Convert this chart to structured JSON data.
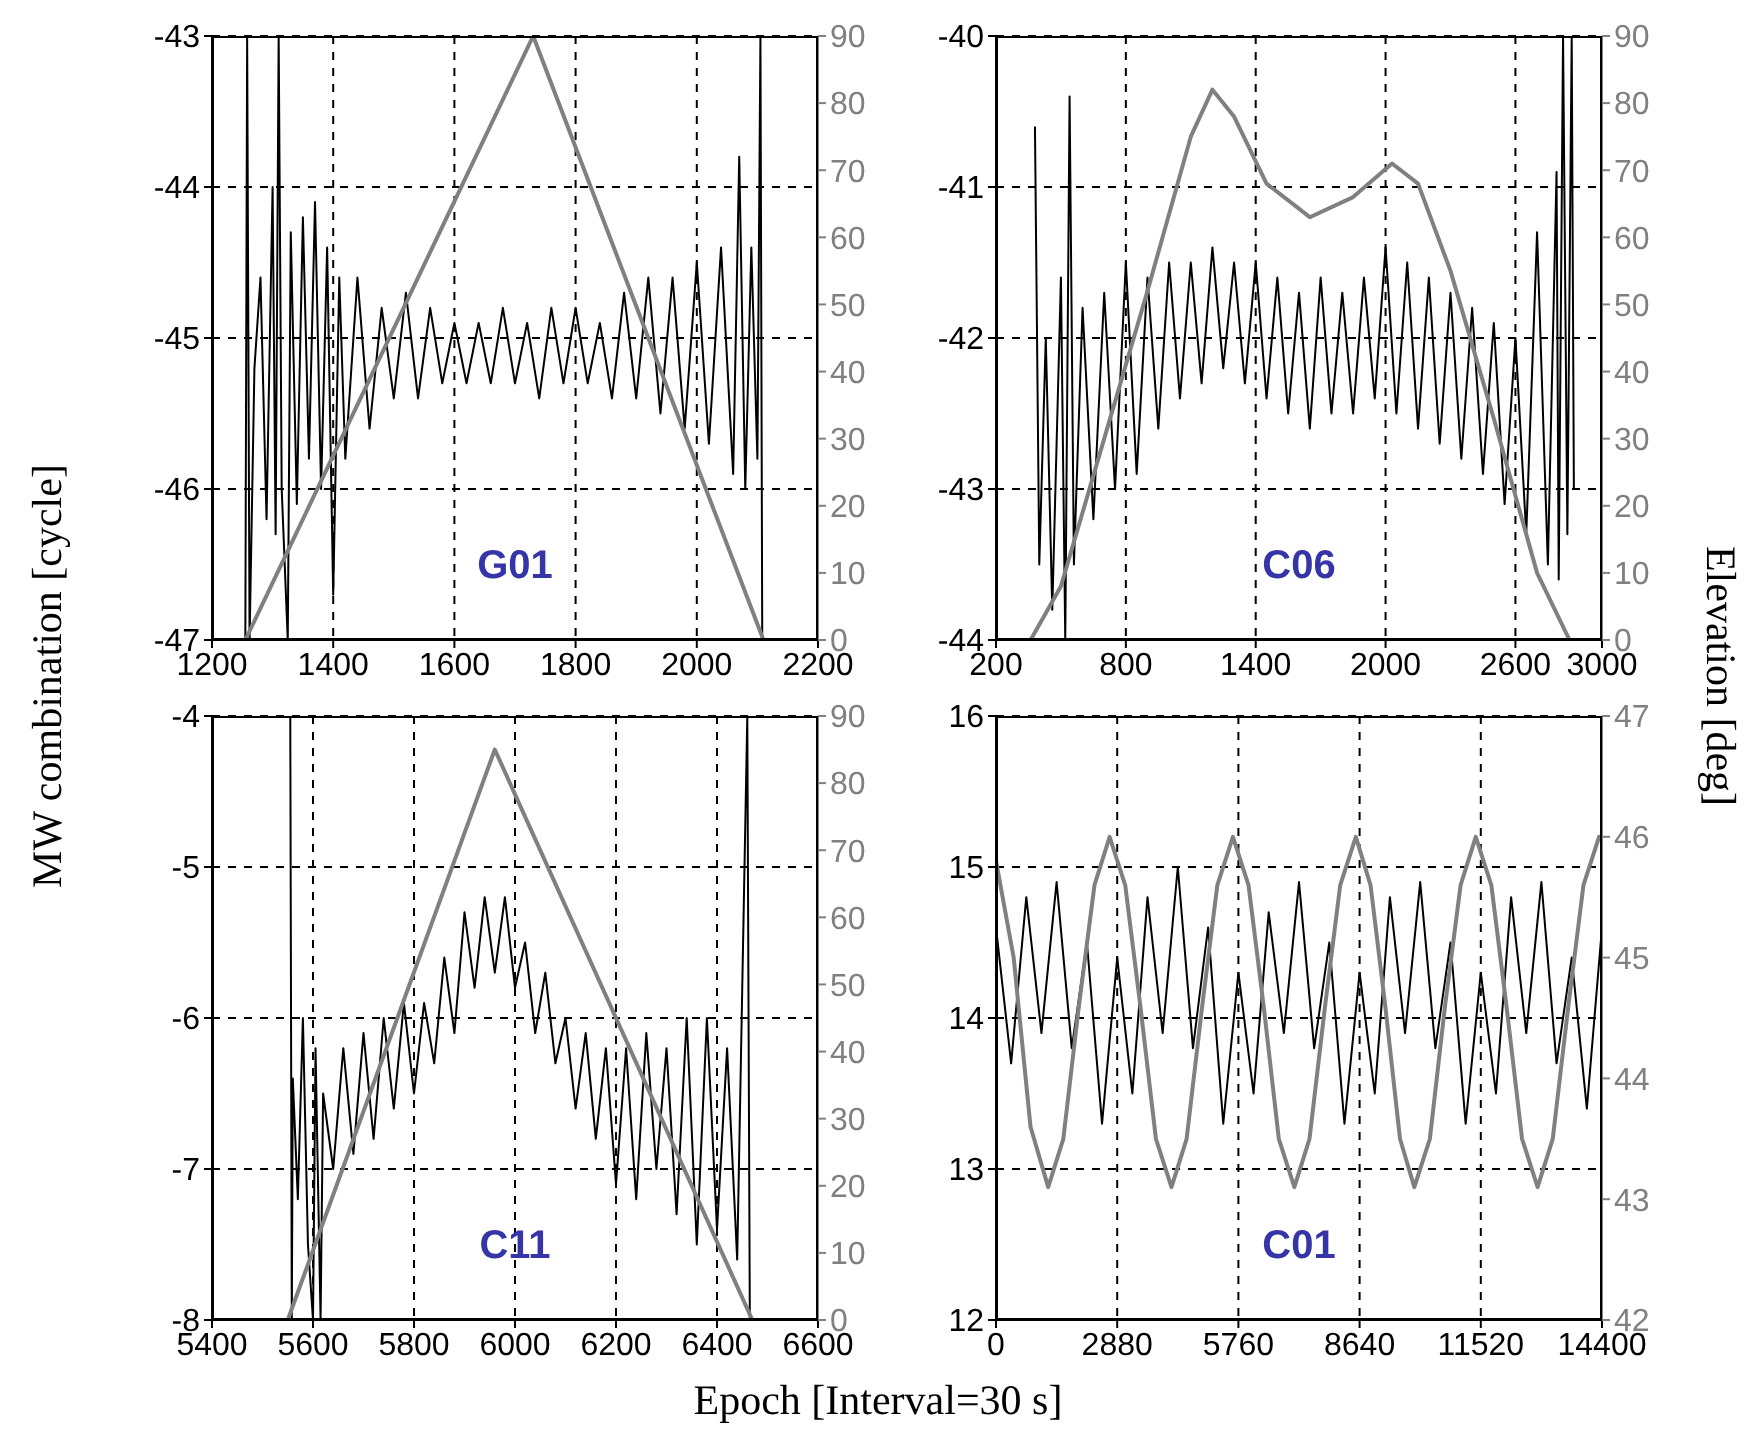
{
  "chart_data": [
    {
      "type": "line",
      "ylabel": "MW combination [cycle]",
      "annotations": [
        "G01"
      ],
      "xlim": [
        1200,
        2200
      ],
      "xticks": [
        1200,
        1400,
        1600,
        1800,
        2000,
        2200
      ],
      "ylim": [
        -47,
        -43
      ],
      "yticks": [
        -47,
        -46,
        -45,
        -44,
        -43
      ],
      "y2lim": [
        0,
        90
      ],
      "y2ticks": [
        0,
        10,
        20,
        30,
        40,
        50,
        60,
        70,
        80,
        90
      ],
      "grid": true,
      "series": [
        {
          "color": "#000000",
          "x": [
            1255,
            1258,
            1262,
            1270,
            1280,
            1290,
            1300,
            1305,
            1310,
            1315,
            1325,
            1330,
            1340,
            1350,
            1360,
            1370,
            1380,
            1390,
            1400,
            1410,
            1420,
            1440,
            1460,
            1480,
            1500,
            1520,
            1540,
            1560,
            1580,
            1600,
            1620,
            1640,
            1660,
            1680,
            1700,
            1720,
            1740,
            1760,
            1780,
            1800,
            1820,
            1840,
            1860,
            1880,
            1900,
            1920,
            1940,
            1960,
            1980,
            2000,
            2020,
            2040,
            2060,
            2070,
            2080,
            2090,
            2100,
            2105,
            2108
          ],
          "values": [
            -47,
            -43,
            -47,
            -45.2,
            -44.6,
            -46.2,
            -44,
            -46.3,
            -43,
            -46,
            -47,
            -44.3,
            -46.1,
            -44.2,
            -45.8,
            -44.1,
            -46,
            -44.4,
            -46.7,
            -44.6,
            -45.8,
            -44.6,
            -45.6,
            -44.8,
            -45.4,
            -44.7,
            -45.4,
            -44.8,
            -45.3,
            -44.9,
            -45.3,
            -44.9,
            -45.3,
            -44.8,
            -45.3,
            -44.9,
            -45.4,
            -44.8,
            -45.3,
            -44.8,
            -45.3,
            -44.9,
            -45.4,
            -44.7,
            -45.4,
            -44.6,
            -45.5,
            -44.6,
            -45.6,
            -44.5,
            -45.7,
            -44.4,
            -45.9,
            -43.8,
            -46,
            -44.4,
            -45.8,
            -43,
            -47
          ]
        },
        {
          "color": "#808080",
          "axis": "y2",
          "x": [
            1255,
            1730,
            2110
          ],
          "values": [
            0,
            90,
            0
          ]
        }
      ]
    },
    {
      "type": "line",
      "y2label": "Elevation [deg]",
      "annotations": [
        "C06"
      ],
      "xlim": [
        200,
        3000
      ],
      "xticks": [
        200,
        800,
        1400,
        2000,
        2600,
        3000
      ],
      "ylim": [
        -44,
        -40
      ],
      "yticks": [
        -44,
        -43,
        -42,
        -41,
        -40
      ],
      "y2lim": [
        0,
        90
      ],
      "y2ticks": [
        0,
        10,
        20,
        30,
        40,
        50,
        60,
        70,
        80,
        90
      ],
      "grid": true,
      "series": [
        {
          "color": "#000000",
          "x": [
            380,
            400,
            430,
            460,
            500,
            520,
            540,
            560,
            600,
            650,
            700,
            750,
            800,
            850,
            900,
            950,
            1000,
            1050,
            1100,
            1150,
            1200,
            1250,
            1300,
            1350,
            1400,
            1450,
            1500,
            1550,
            1600,
            1650,
            1700,
            1750,
            1800,
            1850,
            1900,
            1950,
            2000,
            2050,
            2100,
            2150,
            2200,
            2250,
            2300,
            2350,
            2400,
            2450,
            2500,
            2550,
            2600,
            2650,
            2700,
            2750,
            2790,
            2800,
            2820,
            2840,
            2860,
            2870
          ],
          "values": [
            -40.6,
            -43.5,
            -42,
            -43.8,
            -41.6,
            -44,
            -40.4,
            -43.5,
            -41.8,
            -43.2,
            -41.7,
            -43,
            -41.5,
            -42.9,
            -41.6,
            -42.6,
            -41.5,
            -42.4,
            -41.5,
            -42.3,
            -41.4,
            -42.2,
            -41.5,
            -42.3,
            -41.5,
            -42.4,
            -41.6,
            -42.5,
            -41.7,
            -42.6,
            -41.6,
            -42.5,
            -41.7,
            -42.5,
            -41.6,
            -42.4,
            -41.4,
            -42.5,
            -41.5,
            -42.6,
            -41.6,
            -42.7,
            -41.7,
            -42.8,
            -41.8,
            -42.9,
            -41.9,
            -43.1,
            -42,
            -43.3,
            -41.3,
            -43.5,
            -40.9,
            -43.6,
            -40,
            -43.3,
            -40,
            -43
          ]
        },
        {
          "color": "#808080",
          "axis": "y2",
          "x": [
            300,
            360,
            500,
            700,
            900,
            1100,
            1200,
            1300,
            1450,
            1650,
            1850,
            2030,
            2150,
            2300,
            2500,
            2700,
            2850
          ],
          "values": [
            0,
            0,
            8,
            30,
            52,
            75,
            82,
            78,
            68,
            63,
            66,
            71,
            68,
            55,
            33,
            10,
            0
          ]
        }
      ]
    },
    {
      "type": "line",
      "xlabel": "Epoch [Interval=30 s]",
      "annotations": [
        "C11"
      ],
      "xlim": [
        5400,
        6600
      ],
      "xticks": [
        5400,
        5600,
        5800,
        6000,
        6200,
        6400,
        6600
      ],
      "ylim": [
        -8,
        -4
      ],
      "yticks": [
        -8,
        -7,
        -6,
        -5,
        -4
      ],
      "y2lim": [
        0,
        90
      ],
      "y2ticks": [
        0,
        10,
        20,
        30,
        40,
        50,
        60,
        70,
        80,
        90
      ],
      "grid": true,
      "series": [
        {
          "color": "#000000",
          "x": [
            5555,
            5558,
            5560,
            5570,
            5580,
            5590,
            5600,
            5605,
            5615,
            5620,
            5640,
            5660,
            5680,
            5700,
            5720,
            5740,
            5760,
            5780,
            5800,
            5820,
            5840,
            5860,
            5880,
            5900,
            5920,
            5940,
            5960,
            5980,
            6000,
            6020,
            6040,
            6060,
            6080,
            6100,
            6120,
            6140,
            6160,
            6180,
            6200,
            6220,
            6240,
            6260,
            6280,
            6300,
            6320,
            6340,
            6360,
            6380,
            6400,
            6420,
            6440,
            6450,
            6460,
            6465
          ],
          "values": [
            -4,
            -8,
            -6.4,
            -7.2,
            -6,
            -7.5,
            -8,
            -6.2,
            -8,
            -6.5,
            -7,
            -6.2,
            -6.9,
            -6.1,
            -6.8,
            -6,
            -6.6,
            -5.9,
            -6.5,
            -5.9,
            -6.3,
            -5.6,
            -6.1,
            -5.3,
            -5.8,
            -5.2,
            -5.7,
            -5.2,
            -5.8,
            -5.5,
            -6.1,
            -5.7,
            -6.3,
            -6,
            -6.6,
            -6.1,
            -6.8,
            -6.2,
            -7.1,
            -6.2,
            -7.2,
            -6.1,
            -7,
            -6.2,
            -7.3,
            -6,
            -7.5,
            -6,
            -7.4,
            -6.2,
            -7.6,
            -5.8,
            -4,
            -8
          ]
        },
        {
          "color": "#808080",
          "axis": "y2",
          "x": [
            5550,
            5960,
            6470
          ],
          "values": [
            0,
            85,
            0
          ]
        }
      ]
    },
    {
      "type": "line",
      "annotations": [
        "C01"
      ],
      "xlim": [
        0,
        14400
      ],
      "xticks": [
        0,
        2880,
        5760,
        8640,
        11520,
        14400
      ],
      "ylim": [
        12,
        16
      ],
      "yticks": [
        12,
        13,
        14,
        15,
        16
      ],
      "y2lim": [
        42,
        47
      ],
      "y2ticks": [
        42,
        43,
        44,
        45,
        46,
        47
      ],
      "grid": true,
      "series": [
        {
          "color": "#000000",
          "x": [
            0,
            360,
            720,
            1080,
            1440,
            1800,
            2160,
            2520,
            2880,
            3240,
            3600,
            3960,
            4320,
            4680,
            5040,
            5400,
            5760,
            6120,
            6480,
            6840,
            7200,
            7560,
            7920,
            8280,
            8640,
            9000,
            9360,
            9720,
            10080,
            10440,
            10800,
            11160,
            11520,
            11880,
            12240,
            12600,
            12960,
            13320,
            13680,
            14040,
            14400
          ],
          "values": [
            14.6,
            13.7,
            14.8,
            13.9,
            14.9,
            13.8,
            14.5,
            13.3,
            14.4,
            13.5,
            14.8,
            13.9,
            15,
            13.8,
            14.6,
            13.3,
            14.3,
            13.5,
            14.7,
            13.9,
            14.9,
            13.8,
            14.5,
            13.3,
            14.3,
            13.5,
            14.8,
            13.9,
            14.9,
            13.8,
            14.5,
            13.3,
            14.3,
            13.5,
            14.8,
            13.9,
            14.9,
            13.7,
            14.4,
            13.4,
            14.6
          ]
        },
        {
          "color": "#808080",
          "axis": "y2",
          "x": [
            0,
            420,
            820,
            1240,
            1600,
            1970,
            2340,
            2700,
            3070,
            3430,
            3800,
            4170,
            4530,
            4900,
            5260,
            5630,
            6000,
            6360,
            6720,
            7090,
            7450,
            7820,
            8180,
            8550,
            8900,
            9250,
            9600,
            9940,
            10310,
            10670,
            11040,
            11400,
            11770,
            12130,
            12500,
            12870,
            13230,
            13600,
            13960,
            14330,
            14400
          ],
          "values": [
            45.8,
            45,
            43.6,
            43.1,
            43.5,
            44.6,
            45.6,
            46,
            45.6,
            44.6,
            43.5,
            43.1,
            43.5,
            44.6,
            45.6,
            46,
            45.6,
            44.6,
            43.5,
            43.1,
            43.5,
            44.6,
            45.6,
            46,
            45.6,
            44.6,
            43.5,
            43.1,
            43.5,
            44.6,
            45.6,
            46,
            45.6,
            44.6,
            43.5,
            43.1,
            43.5,
            44.6,
            45.6,
            46,
            46
          ]
        }
      ]
    }
  ]
}
